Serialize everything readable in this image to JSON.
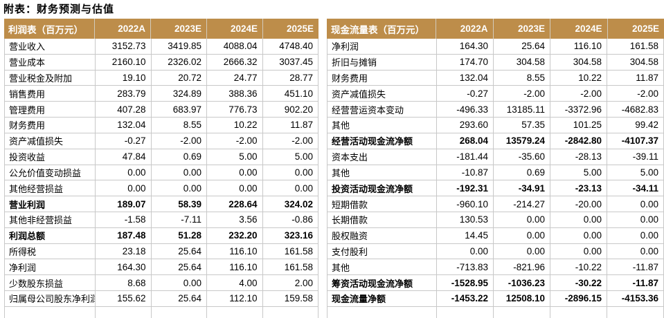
{
  "page": {
    "title": "附表：财务预测与估值"
  },
  "colors": {
    "header_bg": "#BD8D4A",
    "header_text": "#FFFFFF",
    "grid_border": "#C8C8C8",
    "text": "#000000"
  },
  "tables": [
    {
      "id": "income-statement",
      "header": {
        "label": "利润表（百万元）",
        "columns": [
          "2022A",
          "2023E",
          "2024E",
          "2025E"
        ]
      },
      "rows": [
        {
          "label": "营业收入",
          "values": [
            "3152.73",
            "3419.85",
            "4088.04",
            "4748.40"
          ],
          "bold": false
        },
        {
          "label": "营业成本",
          "values": [
            "2160.10",
            "2326.02",
            "2666.32",
            "3037.45"
          ],
          "bold": false
        },
        {
          "label": "营业税金及附加",
          "values": [
            "19.10",
            "20.72",
            "24.77",
            "28.77"
          ],
          "bold": false
        },
        {
          "label": "销售费用",
          "values": [
            "283.79",
            "324.89",
            "388.36",
            "451.10"
          ],
          "bold": false
        },
        {
          "label": "管理费用",
          "values": [
            "407.28",
            "683.97",
            "776.73",
            "902.20"
          ],
          "bold": false
        },
        {
          "label": "财务费用",
          "values": [
            "132.04",
            "8.55",
            "10.22",
            "11.87"
          ],
          "bold": false
        },
        {
          "label": "资产减值损失",
          "values": [
            "-0.27",
            "-2.00",
            "-2.00",
            "-2.00"
          ],
          "bold": false
        },
        {
          "label": "投资收益",
          "values": [
            "47.84",
            "0.69",
            "5.00",
            "5.00"
          ],
          "bold": false
        },
        {
          "label": "公允价值变动损益",
          "values": [
            "0.00",
            "0.00",
            "0.00",
            "0.00"
          ],
          "bold": false
        },
        {
          "label": "其他经营损益",
          "values": [
            "0.00",
            "0.00",
            "0.00",
            "0.00"
          ],
          "bold": false
        },
        {
          "label": "营业利润",
          "values": [
            "189.07",
            "58.39",
            "228.64",
            "324.02"
          ],
          "bold": true
        },
        {
          "label": "其他非经营损益",
          "values": [
            "-1.58",
            "-7.11",
            "3.56",
            "-0.86"
          ],
          "bold": false
        },
        {
          "label": "利润总额",
          "values": [
            "187.48",
            "51.28",
            "232.20",
            "323.16"
          ],
          "bold": true
        },
        {
          "label": "所得税",
          "values": [
            "23.18",
            "25.64",
            "116.10",
            "161.58"
          ],
          "bold": false
        },
        {
          "label": "净利润",
          "values": [
            "164.30",
            "25.64",
            "116.10",
            "161.58"
          ],
          "bold": false
        },
        {
          "label": "少数股东损益",
          "values": [
            "8.68",
            "0.00",
            "4.00",
            "2.00"
          ],
          "bold": false
        },
        {
          "label": "归属母公司股东净利润",
          "values": [
            "155.62",
            "25.64",
            "112.10",
            "159.58"
          ],
          "bold": false
        }
      ]
    },
    {
      "id": "cash-flow-statement",
      "header": {
        "label": "现金流量表（百万元）",
        "columns": [
          "2022A",
          "2023E",
          "2024E",
          "2025E"
        ]
      },
      "rows": [
        {
          "label": "净利润",
          "values": [
            "164.30",
            "25.64",
            "116.10",
            "161.58"
          ],
          "bold": false
        },
        {
          "label": "折旧与摊销",
          "values": [
            "174.70",
            "304.58",
            "304.58",
            "304.58"
          ],
          "bold": false
        },
        {
          "label": "财务费用",
          "values": [
            "132.04",
            "8.55",
            "10.22",
            "11.87"
          ],
          "bold": false
        },
        {
          "label": "资产减值损失",
          "values": [
            "-0.27",
            "-2.00",
            "-2.00",
            "-2.00"
          ],
          "bold": false
        },
        {
          "label": "经营营运资本变动",
          "values": [
            "-496.33",
            "13185.11",
            "-3372.96",
            "-4682.83"
          ],
          "bold": false
        },
        {
          "label": "其他",
          "values": [
            "293.60",
            "57.35",
            "101.25",
            "99.42"
          ],
          "bold": false
        },
        {
          "label": "经营活动现金流净额",
          "values": [
            "268.04",
            "13579.24",
            "-2842.80",
            "-4107.37"
          ],
          "bold": true
        },
        {
          "label": "资本支出",
          "values": [
            "-181.44",
            "-35.60",
            "-28.13",
            "-39.11"
          ],
          "bold": false
        },
        {
          "label": "其他",
          "values": [
            "-10.87",
            "0.69",
            "5.00",
            "5.00"
          ],
          "bold": false
        },
        {
          "label": "投资活动现金流净额",
          "values": [
            "-192.31",
            "-34.91",
            "-23.13",
            "-34.11"
          ],
          "bold": true
        },
        {
          "label": "短期借款",
          "values": [
            "-960.10",
            "-214.27",
            "-20.00",
            "0.00"
          ],
          "bold": false
        },
        {
          "label": "长期借款",
          "values": [
            "130.53",
            "0.00",
            "0.00",
            "0.00"
          ],
          "bold": false
        },
        {
          "label": "股权融资",
          "values": [
            "14.45",
            "0.00",
            "0.00",
            "0.00"
          ],
          "bold": false
        },
        {
          "label": "支付股利",
          "values": [
            "0.00",
            "0.00",
            "0.00",
            "0.00"
          ],
          "bold": false
        },
        {
          "label": "其他",
          "values": [
            "-713.83",
            "-821.96",
            "-10.22",
            "-11.87"
          ],
          "bold": false
        },
        {
          "label": "筹资活动现金流净额",
          "values": [
            "-1528.95",
            "-1036.23",
            "-30.22",
            "-11.87"
          ],
          "bold": true
        },
        {
          "label": "现金流量净额",
          "values": [
            "-1453.22",
            "12508.10",
            "-2896.15",
            "-4153.36"
          ],
          "bold": true
        }
      ]
    }
  ]
}
